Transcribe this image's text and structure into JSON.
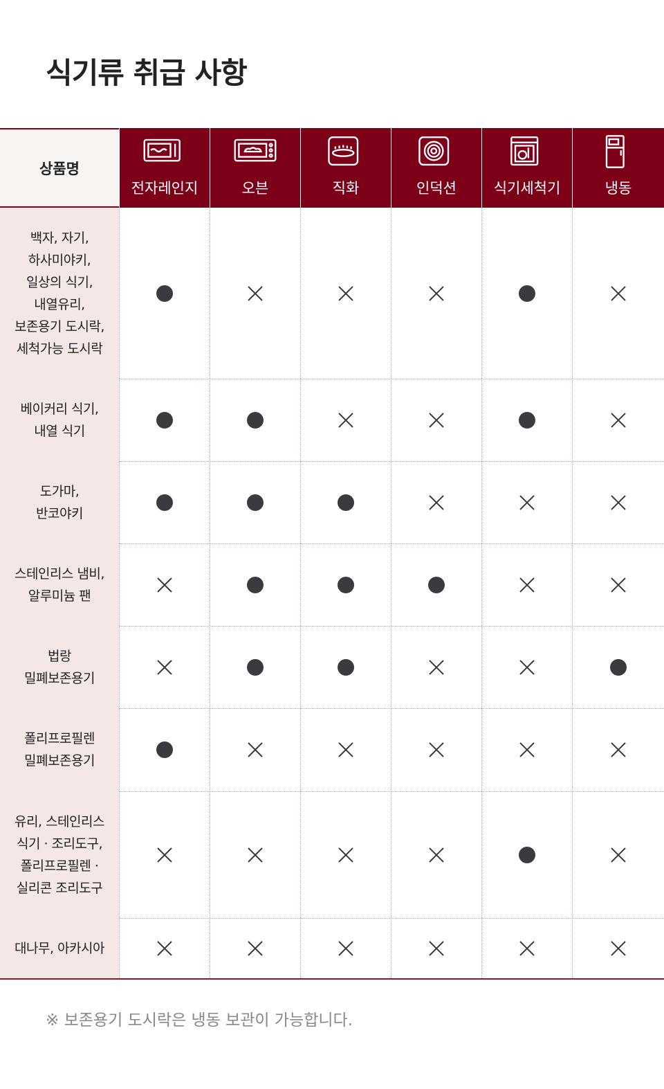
{
  "header": {
    "title": "식기류 취급 사항"
  },
  "table": {
    "corner": "상품명",
    "columns": [
      "전자레인지",
      "오븐",
      "직화",
      "인덕션",
      "식기세척기",
      "냉동"
    ],
    "rows": [
      {
        "name": "백자, 자기,\n하사미야키,\n일상의 식기,\n내열유리,\n보존용기 도시락,\n세척가능 도시락",
        "cells": [
          true,
          false,
          false,
          false,
          true,
          false
        ]
      },
      {
        "name": "베이커리 식기,\n내열 식기",
        "cells": [
          true,
          true,
          false,
          false,
          true,
          false
        ]
      },
      {
        "name": "도가마,\n반코야키",
        "cells": [
          true,
          true,
          true,
          false,
          false,
          false
        ]
      },
      {
        "name": "스테인리스 냄비,\n알루미늄 팬",
        "cells": [
          false,
          true,
          true,
          true,
          false,
          false
        ]
      },
      {
        "name": "법랑\n밀폐보존용기",
        "cells": [
          false,
          true,
          true,
          false,
          false,
          true
        ]
      },
      {
        "name": "폴리프로필렌\n밀폐보존용기",
        "cells": [
          true,
          false,
          false,
          false,
          false,
          false
        ]
      },
      {
        "name": "유리, 스테인리스\n식기 · 조리도구,\n폴리프로필렌 ·\n실리콘 조리도구",
        "cells": [
          false,
          false,
          false,
          false,
          true,
          false
        ]
      },
      {
        "name": "대나무, 아카시아",
        "cells": [
          false,
          false,
          false,
          false,
          false,
          false
        ]
      }
    ]
  },
  "footnote": "※ 보존용기 도시락은 냉동 보관이 가능합니다."
}
